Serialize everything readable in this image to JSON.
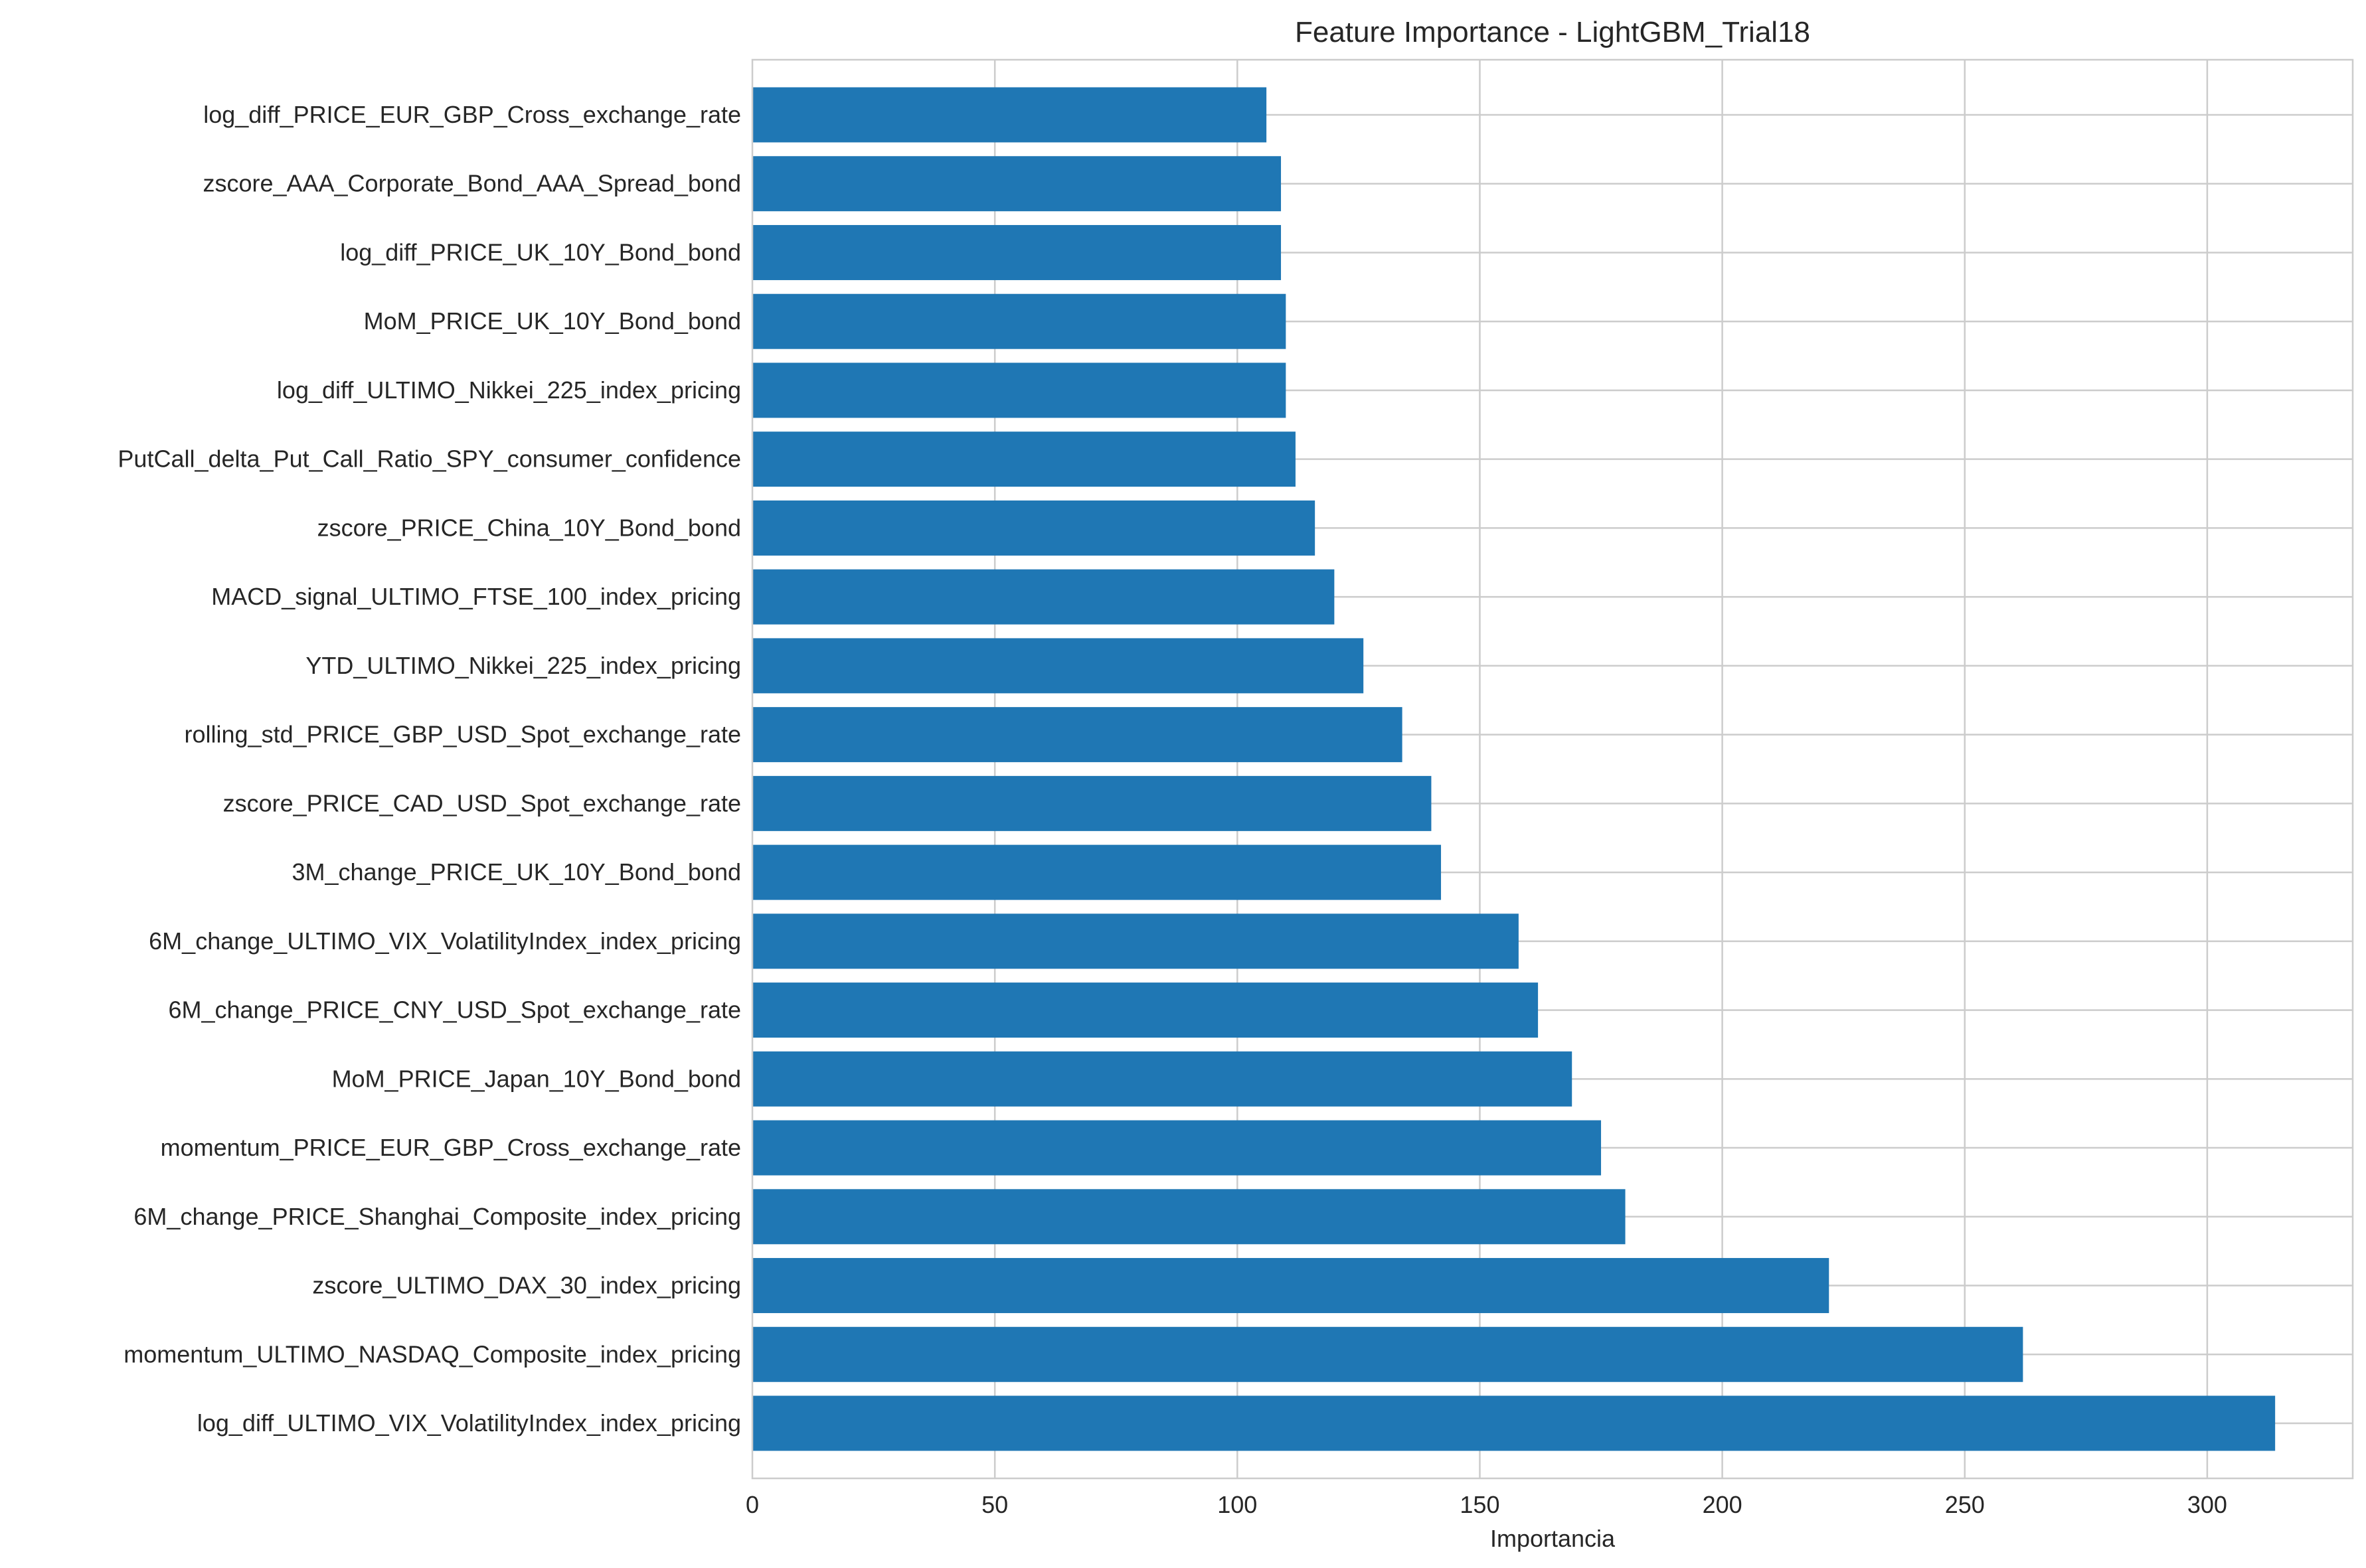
{
  "chart_data": {
    "type": "bar",
    "orientation": "horizontal",
    "title": "Feature Importance - LightGBM_Trial18",
    "xlabel": "Importancia",
    "ylabel": "",
    "xlim": [
      0,
      330
    ],
    "xticks": [
      0,
      50,
      100,
      150,
      200,
      250,
      300
    ],
    "grid": true,
    "bar_color": "#1f77b4",
    "grid_color": "#cccccc",
    "frame_color": "#cccccc",
    "categories": [
      "log_diff_PRICE_EUR_GBP_Cross_exchange_rate",
      "zscore_AAA_Corporate_Bond_AAA_Spread_bond",
      "log_diff_PRICE_UK_10Y_Bond_bond",
      "MoM_PRICE_UK_10Y_Bond_bond",
      "log_diff_ULTIMO_Nikkei_225_index_pricing",
      "PutCall_delta_Put_Call_Ratio_SPY_consumer_confidence",
      "zscore_PRICE_China_10Y_Bond_bond",
      "MACD_signal_ULTIMO_FTSE_100_index_pricing",
      "YTD_ULTIMO_Nikkei_225_index_pricing",
      "rolling_std_PRICE_GBP_USD_Spot_exchange_rate",
      "zscore_PRICE_CAD_USD_Spot_exchange_rate",
      "3M_change_PRICE_UK_10Y_Bond_bond",
      "6M_change_ULTIMO_VIX_VolatilityIndex_index_pricing",
      "6M_change_PRICE_CNY_USD_Spot_exchange_rate",
      "MoM_PRICE_Japan_10Y_Bond_bond",
      "momentum_PRICE_EUR_GBP_Cross_exchange_rate",
      "6M_change_PRICE_Shanghai_Composite_index_pricing",
      "zscore_ULTIMO_DAX_30_index_pricing",
      "momentum_ULTIMO_NASDAQ_Composite_index_pricing",
      "log_diff_ULTIMO_VIX_VolatilityIndex_index_pricing"
    ],
    "values": [
      106,
      109,
      109,
      110,
      110,
      112,
      116,
      120,
      126,
      134,
      140,
      142,
      158,
      162,
      169,
      175,
      180,
      222,
      262,
      314
    ]
  }
}
